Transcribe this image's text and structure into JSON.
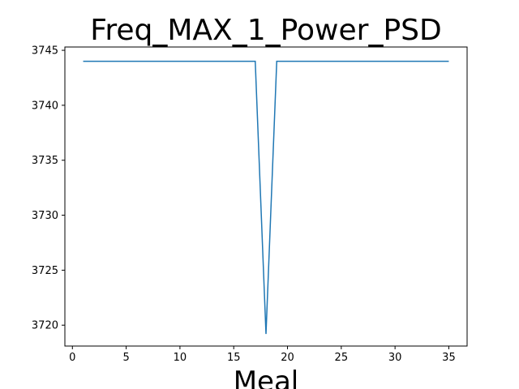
{
  "chart_data": {
    "type": "line",
    "title": "Freq_MAX_1_Power_PSD",
    "xlabel": "Meal",
    "ylabel": "",
    "xlim": [
      -0.7,
      36.7
    ],
    "ylim": [
      3718.1,
      3745.3
    ],
    "xticks": [
      0,
      5,
      10,
      15,
      20,
      25,
      30,
      35
    ],
    "yticks": [
      3720,
      3725,
      3730,
      3735,
      3740,
      3745
    ],
    "grid": false,
    "series": [
      {
        "color": "#1f77b4",
        "x": [
          1,
          2,
          3,
          4,
          5,
          6,
          7,
          8,
          9,
          10,
          11,
          12,
          13,
          14,
          15,
          16,
          17,
          18,
          19,
          20,
          21,
          22,
          23,
          24,
          25,
          26,
          27,
          28,
          29,
          30,
          31,
          32,
          33,
          34,
          35
        ],
        "y": [
          3744,
          3744,
          3744,
          3744,
          3744,
          3744,
          3744,
          3744,
          3744,
          3744,
          3744,
          3744,
          3744,
          3744,
          3744,
          3744,
          3744,
          3719.2,
          3744,
          3744,
          3744,
          3744,
          3744,
          3744,
          3744,
          3744,
          3744,
          3744,
          3744,
          3744,
          3744,
          3744,
          3744,
          3744,
          3744
        ]
      }
    ]
  }
}
